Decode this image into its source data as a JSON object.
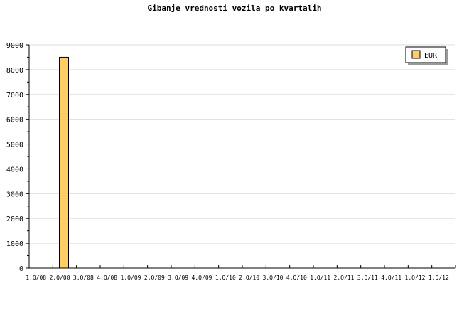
{
  "chart_data": {
    "type": "bar",
    "title": "Gibanje vrednosti vozila po kvartalih",
    "categories": [
      "1.Q/08",
      "2.Q/08",
      "3.Q/08",
      "4.Q/08",
      "1.Q/09",
      "2.Q/09",
      "3.Q/09",
      "4.Q/09",
      "1.Q/10",
      "2.Q/10",
      "3.Q/10",
      "4.Q/10",
      "1.Q/11",
      "2.Q/11",
      "3.Q/11",
      "4.Q/11",
      "1.Q/12",
      "1.Q/12"
    ],
    "series": [
      {
        "name": "EUR",
        "values": [
          null,
          8500,
          null,
          null,
          null,
          null,
          null,
          null,
          null,
          null,
          null,
          null,
          null,
          null,
          null,
          null,
          null,
          null
        ],
        "color": "#ffcc66"
      }
    ],
    "ylim": [
      0,
      9000
    ],
    "yticks": [
      0,
      1000,
      2000,
      3000,
      4000,
      5000,
      6000,
      7000,
      8000,
      9000
    ],
    "grid": true,
    "legend": "top-right"
  }
}
